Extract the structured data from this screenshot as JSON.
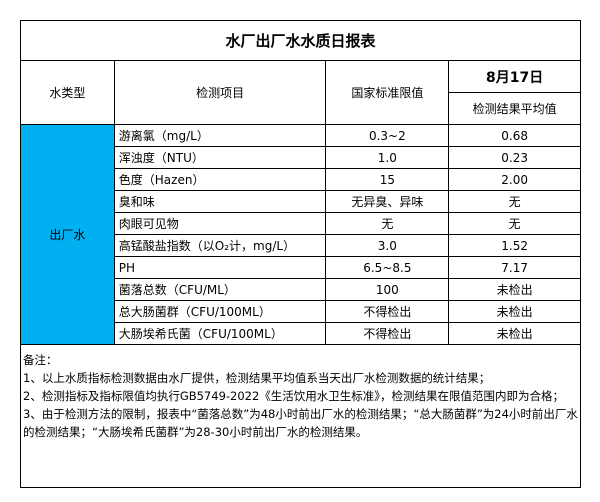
{
  "title": "水厂出厂水水质日报表",
  "headers": {
    "type": "水类型",
    "item": "检测项目",
    "limit": "国家标准限值",
    "date": "8月17日",
    "result": "检测结果平均值"
  },
  "water_type": "出厂水",
  "type_color": "#00b0f0",
  "rows": [
    {
      "item": "游离氯（mg/L）",
      "limit": "0.3~2",
      "result": "0.68"
    },
    {
      "item": "浑浊度（NTU）",
      "limit": "1.0",
      "result": "0.23"
    },
    {
      "item": "色度（Hazen）",
      "limit": "15",
      "result": "2.00"
    },
    {
      "item": "臭和味",
      "limit": "无异臭、异味",
      "result": "无"
    },
    {
      "item": "肉眼可见物",
      "limit": "无",
      "result": "无"
    },
    {
      "item": "高锰酸盐指数（以O₂计，mg/L）",
      "limit": "3.0",
      "result": "1.52"
    },
    {
      "item": "PH",
      "limit": "6.5~8.5",
      "result": "7.17"
    },
    {
      "item": "菌落总数（CFU/ML）",
      "limit": "100",
      "result": "未检出"
    },
    {
      "item": "总大肠菌群（CFU/100ML）",
      "limit": "不得检出",
      "result": "未检出"
    },
    {
      "item": "大肠埃希氏菌（CFU/100ML）",
      "limit": "不得检出",
      "result": "未检出"
    }
  ],
  "notes": {
    "heading": "备注：",
    "lines": [
      "1、以上水质指标检测数据由水厂提供，检测结果平均值系当天出厂水检测数据的统计结果；",
      "2、检测指标及指标限值均执行GB5749-2022《生活饮用水卫生标准》，检测结果在限值范围内即为合格；",
      "3、由于检测方法的限制，报表中“菌落总数”为48小时前出厂水的检测结果；“总大肠菌群”为24小时前出厂水的检测结果；“大肠埃希氏菌群”为28-30小时前出厂水的检测结果。"
    ]
  }
}
